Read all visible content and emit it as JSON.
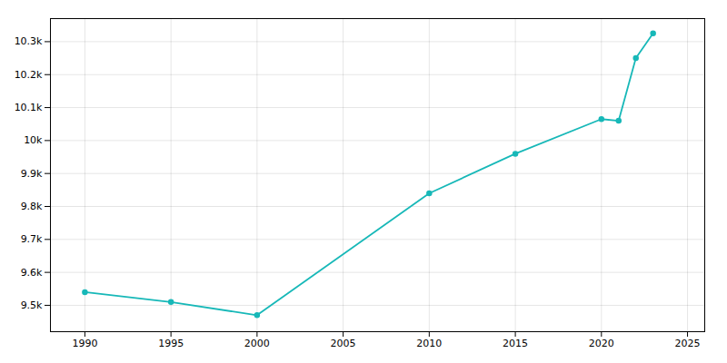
{
  "chart_data": {
    "type": "line",
    "x": [
      1990,
      1995,
      2000,
      2010,
      2015,
      2020,
      2021,
      2022,
      2023
    ],
    "values": [
      9540,
      9510,
      9470,
      9840,
      9960,
      10065,
      10060,
      10250,
      10325
    ],
    "color": "#17b8b8",
    "marker": "circle",
    "xlim": [
      1988,
      2026
    ],
    "ylim": [
      9420,
      10370
    ],
    "xticks": [
      1990,
      1995,
      2000,
      2005,
      2010,
      2015,
      2020,
      2025
    ],
    "yticks": [
      {
        "value": 9500,
        "label": "9.5k"
      },
      {
        "value": 9600,
        "label": "9.6k"
      },
      {
        "value": 9700,
        "label": "9.7k"
      },
      {
        "value": 9800,
        "label": "9.8k"
      },
      {
        "value": 9900,
        "label": "9.9k"
      },
      {
        "value": 10000,
        "label": "10k"
      },
      {
        "value": 10100,
        "label": "10.1k"
      },
      {
        "value": 10200,
        "label": "10.2k"
      },
      {
        "value": 10300,
        "label": "10.3k"
      }
    ],
    "grid": true
  }
}
